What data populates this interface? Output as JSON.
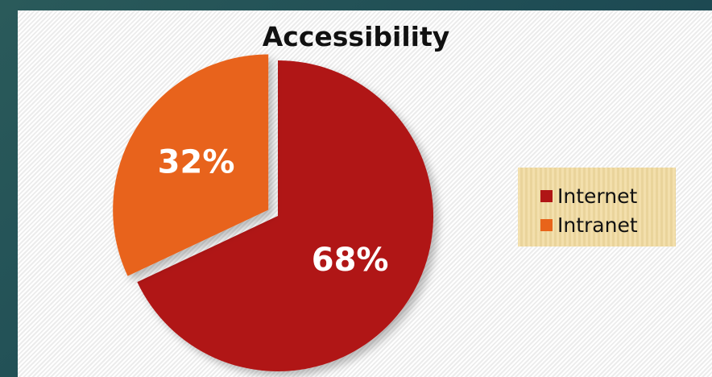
{
  "chart_data": {
    "type": "pie",
    "title": "Accessibility",
    "slices": [
      {
        "name": "Internet",
        "value": 68,
        "label": "68%",
        "color": "#b01515"
      },
      {
        "name": "Intranet",
        "value": 32,
        "label": "32%",
        "color": "#e8641a"
      }
    ],
    "legend": {
      "position": "right"
    }
  }
}
